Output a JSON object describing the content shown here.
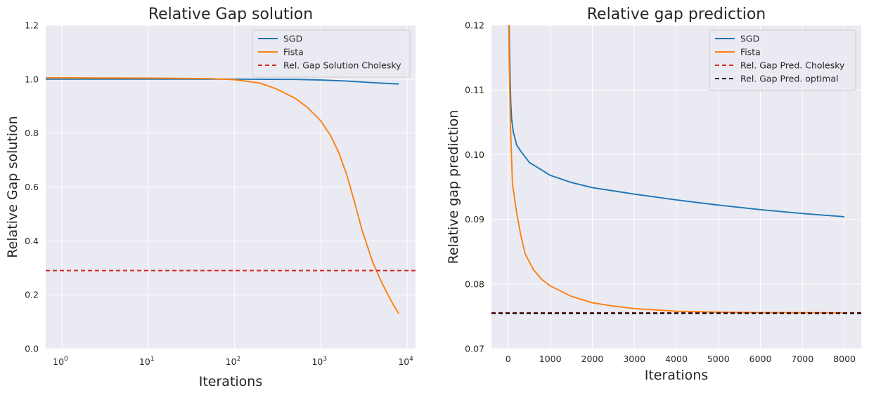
{
  "colors": {
    "background": "#ffffff",
    "axes_face": "#eaeaf2",
    "grid": "#ffffff",
    "sgd": "#1f77b4",
    "fista": "#ff7f0e",
    "cholesky": "#d62728",
    "optimal": "#000000"
  },
  "chart_data": [
    {
      "type": "line",
      "title": "Relative Gap solution",
      "xlabel": "Iterations",
      "ylabel": "Relative Gap solution",
      "xscale": "log",
      "xlim": [
        0.65,
        12500
      ],
      "ylim": [
        0,
        1.2
      ],
      "xticks": [
        1,
        10,
        100,
        1000,
        10000
      ],
      "xtick_labels": [
        [
          "10",
          "0"
        ],
        [
          "10",
          "1"
        ],
        [
          "10",
          "2"
        ],
        [
          "10",
          "3"
        ],
        [
          "10",
          "4"
        ]
      ],
      "yticks": [
        0.0,
        0.2,
        0.4,
        0.6,
        0.8,
        1.0,
        1.2
      ],
      "ytick_labels": [
        "0.0",
        "0.2",
        "0.4",
        "0.6",
        "0.8",
        "1.0",
        "1.2"
      ],
      "grid": true,
      "legend_position": "top-right",
      "series": [
        {
          "name": "SGD",
          "color": "#1f77b4",
          "dash": "",
          "points": [
            [
              0.65,
              1.0
            ],
            [
              1,
              1.0
            ],
            [
              10,
              1.0
            ],
            [
              100,
              1.0
            ],
            [
              500,
              0.999
            ],
            [
              1000,
              0.997
            ],
            [
              2000,
              0.993
            ],
            [
              4000,
              0.987
            ],
            [
              8000,
              0.982
            ]
          ]
        },
        {
          "name": "Fista",
          "color": "#ff7f0e",
          "dash": "",
          "points": [
            [
              0.65,
              1.005
            ],
            [
              1,
              1.005
            ],
            [
              10,
              1.004
            ],
            [
              50,
              1.002
            ],
            [
              100,
              0.998
            ],
            [
              200,
              0.985
            ],
            [
              300,
              0.965
            ],
            [
              500,
              0.93
            ],
            [
              700,
              0.895
            ],
            [
              1000,
              0.845
            ],
            [
              1300,
              0.79
            ],
            [
              1600,
              0.73
            ],
            [
              2000,
              0.645
            ],
            [
              2500,
              0.535
            ],
            [
              3000,
              0.44
            ],
            [
              4000,
              0.32
            ],
            [
              5000,
              0.25
            ],
            [
              6000,
              0.2
            ],
            [
              7000,
              0.16
            ],
            [
              8000,
              0.13
            ]
          ]
        },
        {
          "name": "Rel. Gap Solution Cholesky",
          "color": "#d62728",
          "dash": "6,4",
          "hline": 0.29
        }
      ]
    },
    {
      "type": "line",
      "title": "Relative gap prediction",
      "xlabel": "Iterations",
      "ylabel": "Relative gap prediction",
      "xscale": "linear",
      "xlim": [
        -400,
        8400
      ],
      "ylim": [
        0.07,
        0.12
      ],
      "xticks": [
        0,
        1000,
        2000,
        3000,
        4000,
        5000,
        6000,
        7000,
        8000
      ],
      "xtick_labels": [
        "0",
        "1000",
        "2000",
        "3000",
        "4000",
        "5000",
        "6000",
        "7000",
        "8000"
      ],
      "yticks": [
        0.07,
        0.08,
        0.09,
        0.1,
        0.11,
        0.12
      ],
      "ytick_labels": [
        "0.07",
        "0.08",
        "0.09",
        "0.10",
        "0.11",
        "0.12"
      ],
      "grid": true,
      "legend_position": "top-right",
      "series": [
        {
          "name": "SGD",
          "color": "#1f77b4",
          "dash": "",
          "points": [
            [
              0,
              0.127
            ],
            [
              20,
              0.12
            ],
            [
              40,
              0.113
            ],
            [
              60,
              0.108
            ],
            [
              80,
              0.1055
            ],
            [
              120,
              0.1035
            ],
            [
              200,
              0.1015
            ],
            [
              300,
              0.1005
            ],
            [
              500,
              0.0988
            ],
            [
              1000,
              0.0968
            ],
            [
              1500,
              0.0957
            ],
            [
              2000,
              0.0949
            ],
            [
              3000,
              0.0939
            ],
            [
              4000,
              0.093
            ],
            [
              5000,
              0.0922
            ],
            [
              6000,
              0.0915
            ],
            [
              7000,
              0.0909
            ],
            [
              8000,
              0.0904
            ]
          ]
        },
        {
          "name": "Fista",
          "color": "#ff7f0e",
          "dash": "",
          "points": [
            [
              0,
              0.127
            ],
            [
              20,
              0.115
            ],
            [
              50,
              0.105
            ],
            [
              100,
              0.0955
            ],
            [
              200,
              0.091
            ],
            [
              300,
              0.0875
            ],
            [
              400,
              0.0847
            ],
            [
              600,
              0.0822
            ],
            [
              800,
              0.0807
            ],
            [
              1000,
              0.0797
            ],
            [
              1500,
              0.0781
            ],
            [
              2000,
              0.0771
            ],
            [
              2500,
              0.0766
            ],
            [
              3000,
              0.0762
            ],
            [
              4000,
              0.0758
            ],
            [
              5000,
              0.07565
            ],
            [
              6000,
              0.07558
            ],
            [
              8000,
              0.07555
            ]
          ]
        },
        {
          "name": "Rel. Gap Pred. Cholesky",
          "color": "#d62728",
          "dash": "6,4",
          "hline": 0.07555
        },
        {
          "name": "Rel. Gap Pred. optimal",
          "color": "#000000",
          "dash": "6,4",
          "hline": 0.07548
        }
      ]
    }
  ]
}
